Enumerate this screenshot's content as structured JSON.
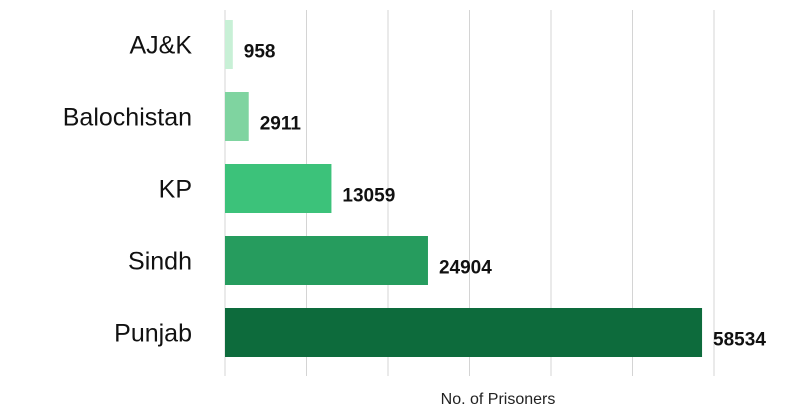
{
  "chart_data": {
    "type": "bar",
    "orientation": "horizontal",
    "categories": [
      "AJ&K",
      "Balochistan",
      "KP",
      "Sindh",
      "Punjab"
    ],
    "values": [
      958,
      2911,
      13059,
      24904,
      58534
    ],
    "colors": [
      "#c8f0d6",
      "#7fd4a0",
      "#3cc27a",
      "#269c5e",
      "#0d6b3c"
    ],
    "xlabel": "No. of Prisoners",
    "ylabel": "",
    "title": "",
    "xlim": [
      0,
      60000
    ],
    "grid": true,
    "legend": "none"
  }
}
